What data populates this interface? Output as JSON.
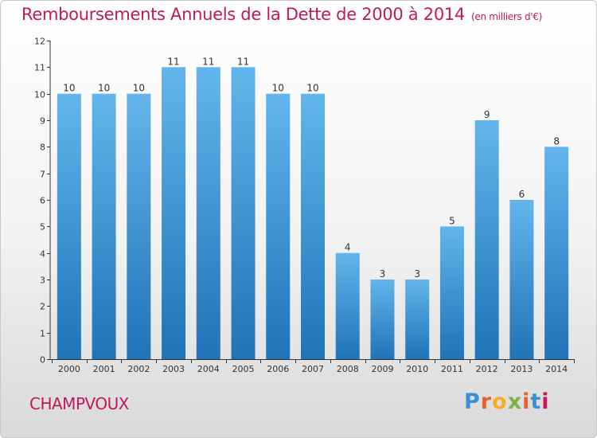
{
  "title": "Remboursements Annuels de la Dette de 2000 à 2014",
  "subtitle": "(en milliers d'€)",
  "commune": "CHAMPVOUX",
  "logo": {
    "letters": [
      "P",
      "r",
      "o",
      "x",
      "i",
      "t",
      "i"
    ],
    "colors": [
      "#3a8fd6",
      "#e8612c",
      "#f2b01e",
      "#7cb342",
      "#e8612c",
      "#3a8fd6",
      "#c2185b"
    ]
  },
  "colors": {
    "bar_top": "#63b5ec",
    "bar_bottom": "#1f73b7",
    "title": "#c2185b",
    "axis": "#333333"
  },
  "chart_data": {
    "type": "bar",
    "title": "Remboursements Annuels de la Dette de 2000 à 2014",
    "subtitle": "(en milliers d'€)",
    "xlabel": "",
    "ylabel": "",
    "categories": [
      "2000",
      "2001",
      "2002",
      "2003",
      "2004",
      "2005",
      "2006",
      "2007",
      "2008",
      "2009",
      "2010",
      "2011",
      "2012",
      "2013",
      "2014"
    ],
    "values": [
      10,
      10,
      10,
      11,
      11,
      11,
      10,
      10,
      4,
      3,
      3,
      5,
      9,
      6,
      8
    ],
    "ylim": [
      0,
      12
    ],
    "yticks": [
      0,
      1,
      2,
      3,
      4,
      5,
      6,
      7,
      8,
      9,
      10,
      11,
      12
    ],
    "grid": false,
    "legend": "none"
  }
}
